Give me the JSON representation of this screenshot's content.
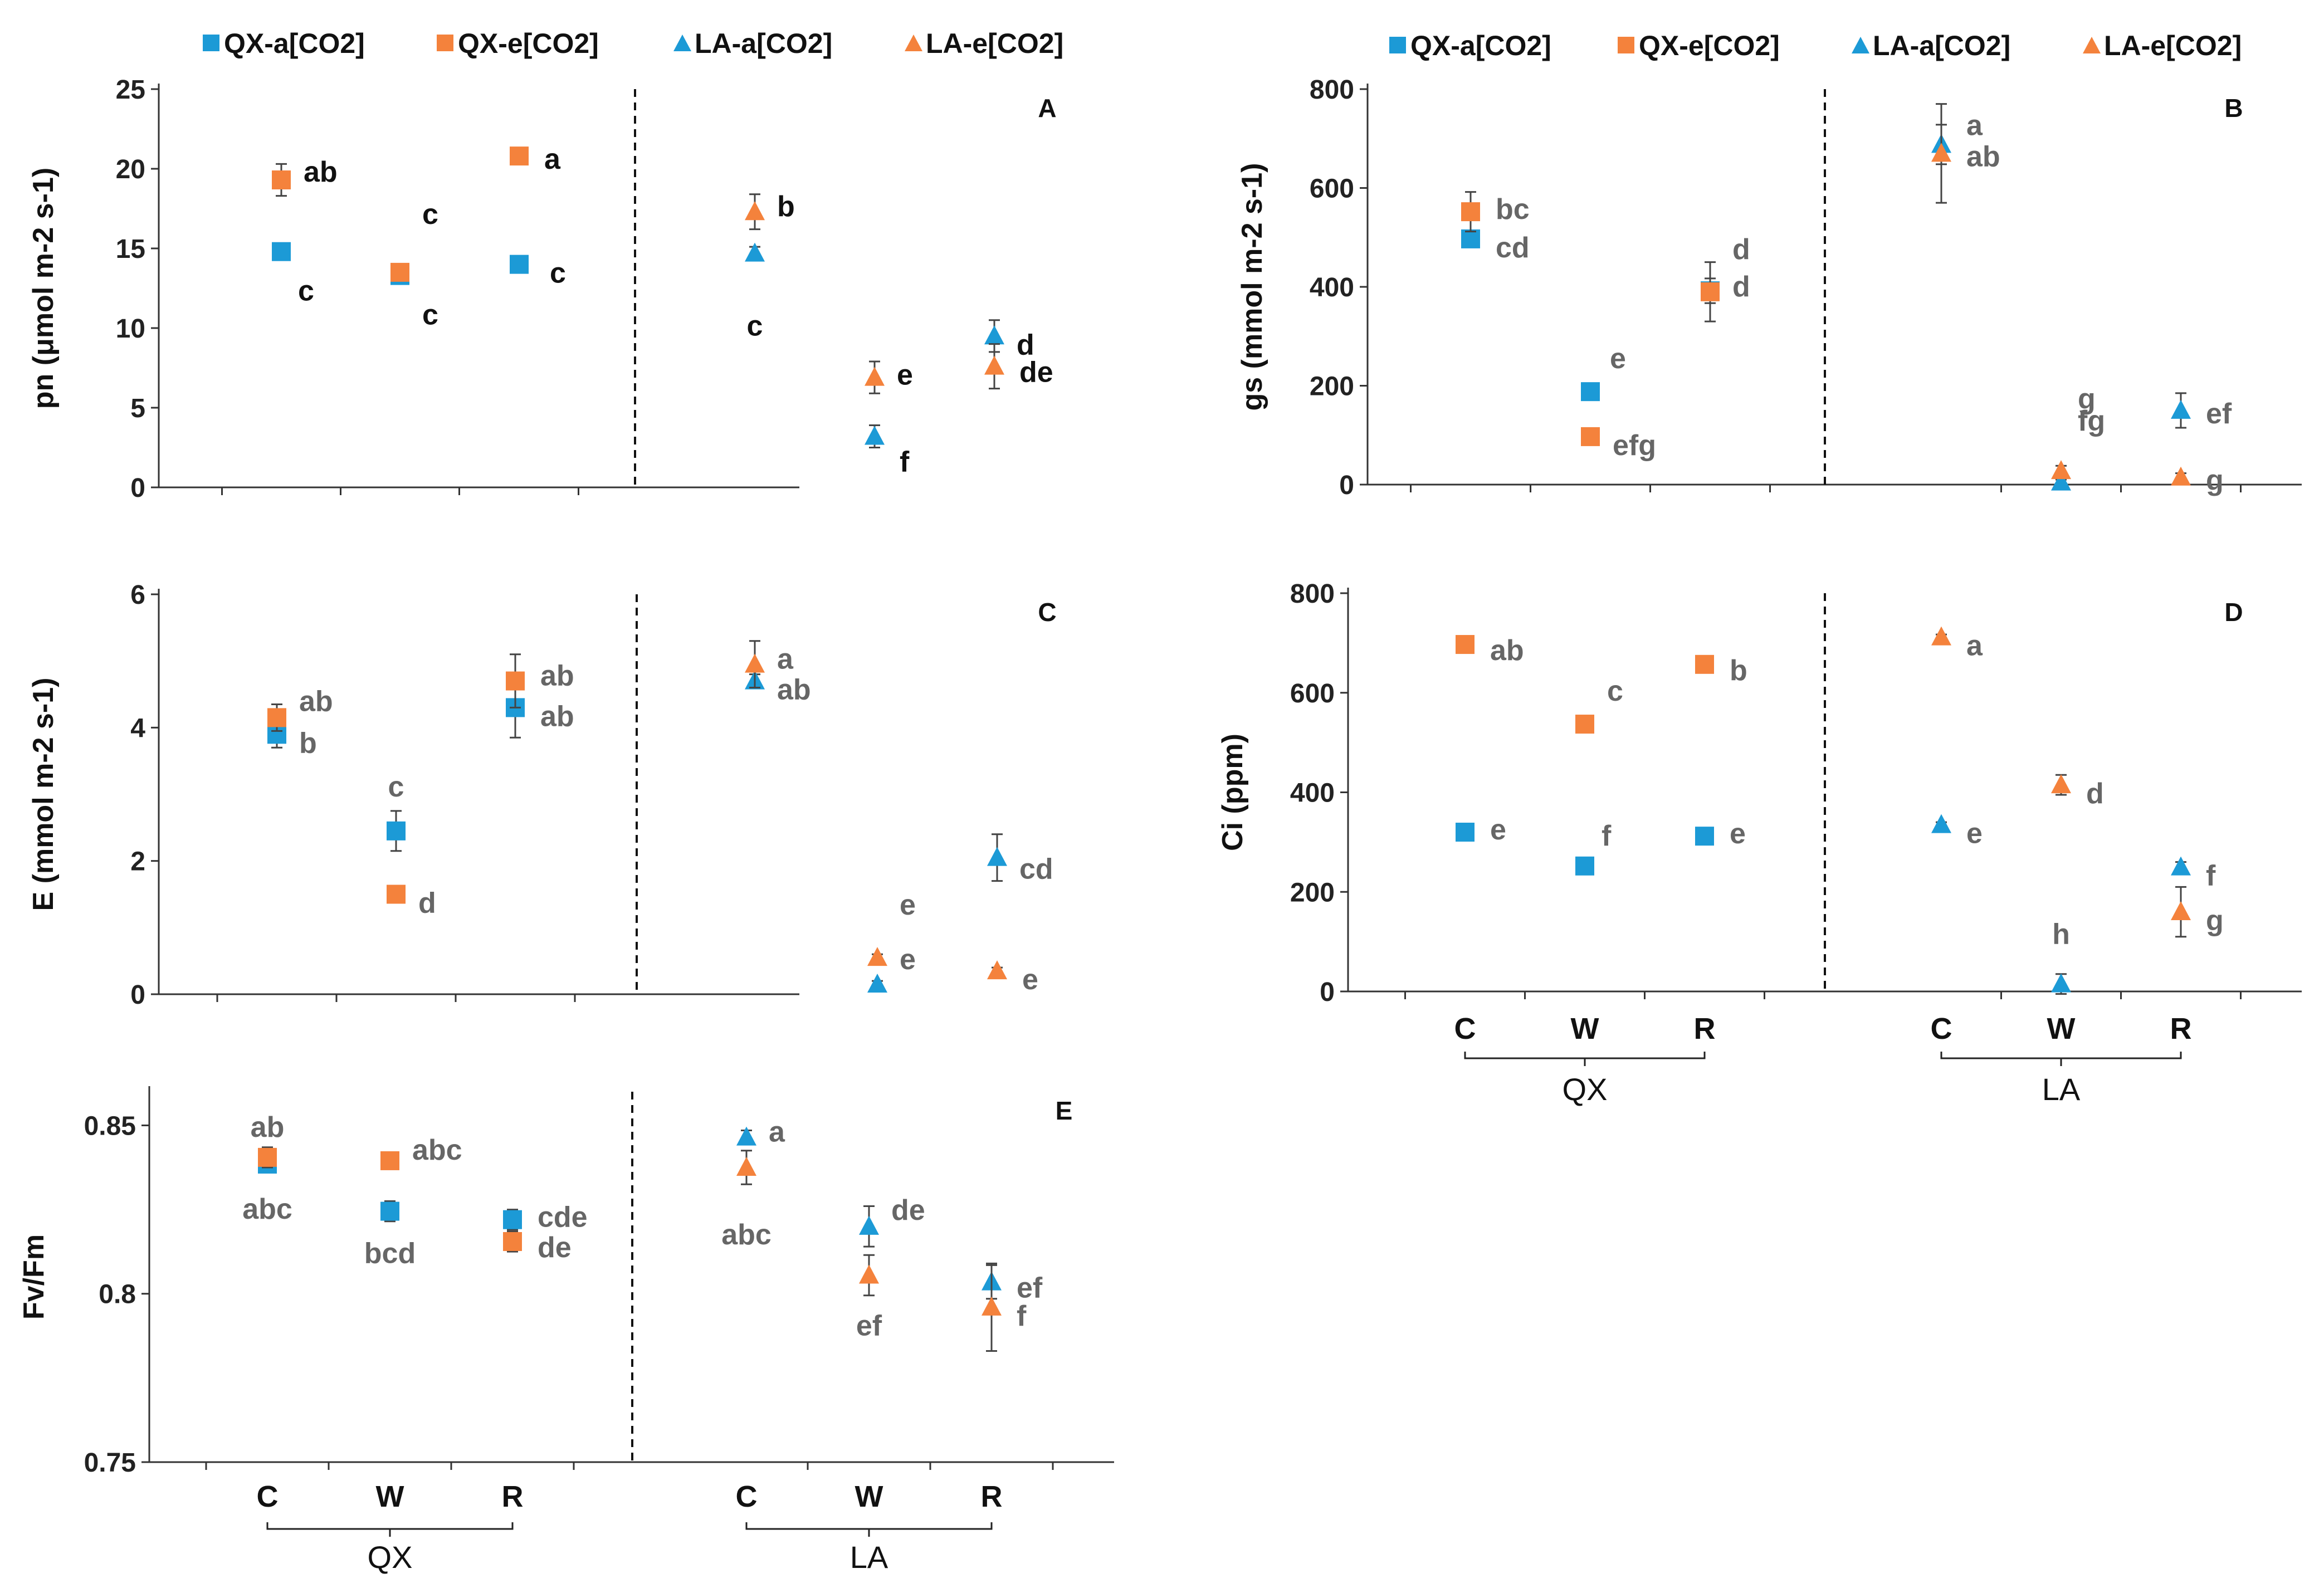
{
  "chart_data": {
    "type": "scatter",
    "colors": {
      "a_co2": "#1c9ad6",
      "e_co2": "#f4823c"
    },
    "legends": [
      {
        "panel": "A",
        "entries": [
          {
            "name": "QX-a[CO2]",
            "marker": "square",
            "color": "#1c9ad6"
          },
          {
            "name": "QX-e[CO2]",
            "marker": "square",
            "color": "#f4823c"
          },
          {
            "name": "LA-a[CO2]",
            "marker": "triangle",
            "color": "#1c9ad6"
          },
          {
            "name": "LA-e[CO2]",
            "marker": "triangle",
            "color": "#f4823c"
          }
        ]
      },
      {
        "panel": "B",
        "entries": [
          {
            "name": "QX-a[CO2]",
            "marker": "square",
            "color": "#1c9ad6"
          },
          {
            "name": "QX-e[CO2]",
            "marker": "square",
            "color": "#f4823c"
          },
          {
            "name": "LA-a[CO2]",
            "marker": "triangle",
            "color": "#1c9ad6"
          },
          {
            "name": "LA-e[CO2]",
            "marker": "triangle",
            "color": "#f4823c"
          }
        ]
      }
    ],
    "panels": [
      {
        "id": "A",
        "ylabel": "pn (μmol m-2 s-1)",
        "ylim": [
          0,
          25
        ],
        "yticks": [
          "0",
          "5",
          "10",
          "15",
          "20",
          "25"
        ],
        "tick_values": [
          0,
          5,
          10,
          15,
          20,
          25
        ],
        "series": [
          {
            "name": "QX-a[CO2]",
            "site": "QX",
            "marker": "square",
            "color": "#1c9ad6",
            "points": [
              {
                "x": "C",
                "y": 14.8,
                "err": 0.4,
                "letter": "c"
              },
              {
                "x": "W",
                "y": 13.3,
                "err": 0.4,
                "letter": "c"
              },
              {
                "x": "R",
                "y": 14.0,
                "err": 0.3,
                "letter": "c"
              }
            ]
          },
          {
            "name": "QX-e[CO2]",
            "site": "QX",
            "marker": "square",
            "color": "#f4823c",
            "points": [
              {
                "x": "C",
                "y": 19.3,
                "err": 1.0,
                "letter": "ab"
              },
              {
                "x": "W",
                "y": 13.5,
                "err": 0.4,
                "letter": "c"
              },
              {
                "x": "R",
                "y": 20.8,
                "err": 0.4,
                "letter": "a"
              }
            ]
          },
          {
            "name": "LA-a[CO2]",
            "site": "LA",
            "marker": "triangle",
            "color": "#1c9ad6",
            "points": [
              {
                "x": "C",
                "y": 14.7,
                "err": 0.4,
                "letter": "c"
              },
              {
                "x": "W",
                "y": 3.2,
                "err": 0.7,
                "letter": "f"
              },
              {
                "x": "R",
                "y": 9.5,
                "err": 1.0,
                "letter": "d"
              }
            ]
          },
          {
            "name": "LA-e[CO2]",
            "site": "LA",
            "marker": "triangle",
            "color": "#f4823c",
            "points": [
              {
                "x": "C",
                "y": 17.3,
                "err": 1.1,
                "letter": "b"
              },
              {
                "x": "W",
                "y": 6.9,
                "err": 1.0,
                "letter": "e"
              },
              {
                "x": "R",
                "y": 7.6,
                "err": 1.4,
                "letter": "de"
              }
            ]
          }
        ]
      },
      {
        "id": "B",
        "ylabel": "gs (mmol m-2 s-1)",
        "ylim": [
          0,
          800
        ],
        "yticks": [
          "0",
          "200",
          "400",
          "600",
          "800"
        ],
        "tick_values": [
          0,
          200,
          400,
          600,
          800
        ],
        "series": [
          {
            "name": "QX-a[CO2]",
            "site": "QX",
            "marker": "square",
            "color": "#1c9ad6",
            "points": [
              {
                "x": "C",
                "y": 497,
                "err": 15,
                "letter": "cd"
              },
              {
                "x": "W",
                "y": 188,
                "err": 15,
                "letter": "e"
              },
              {
                "x": "R",
                "y": 392,
                "err": 25,
                "letter": "d"
              }
            ]
          },
          {
            "name": "QX-e[CO2]",
            "site": "QX",
            "marker": "square",
            "color": "#f4823c",
            "points": [
              {
                "x": "C",
                "y": 552,
                "err": 40,
                "letter": "bc"
              },
              {
                "x": "W",
                "y": 97,
                "err": 10,
                "letter": "efg"
              },
              {
                "x": "R",
                "y": 390,
                "err": 60,
                "letter": "d"
              }
            ]
          },
          {
            "name": "LA-a[CO2]",
            "site": "LA",
            "marker": "triangle",
            "color": "#1c9ad6",
            "points": [
              {
                "x": "C",
                "y": 688,
                "err": 40,
                "letter": "a"
              },
              {
                "x": "W",
                "y": 5,
                "err": 5,
                "letter": "g"
              },
              {
                "x": "R",
                "y": 150,
                "err": 35,
                "letter": "ef"
              }
            ]
          },
          {
            "name": "LA-e[CO2]",
            "site": "LA",
            "marker": "triangle",
            "color": "#f4823c",
            "points": [
              {
                "x": "C",
                "y": 670,
                "err": 100,
                "letter": "ab"
              },
              {
                "x": "W",
                "y": 28,
                "err": 10,
                "letter": "fg"
              },
              {
                "x": "R",
                "y": 15,
                "err": 8,
                "letter": "g"
              }
            ]
          }
        ]
      },
      {
        "id": "C",
        "ylabel": "E (mmol m-2 s-1)",
        "ylim": [
          0,
          6
        ],
        "yticks": [
          "0",
          "2",
          "4",
          "6"
        ],
        "tick_values": [
          0,
          2,
          4,
          6
        ],
        "series": [
          {
            "name": "QX-a[CO2]",
            "site": "QX",
            "marker": "square",
            "color": "#1c9ad6",
            "points": [
              {
                "x": "C",
                "y": 3.9,
                "err": 0.2,
                "letter": "b"
              },
              {
                "x": "W",
                "y": 2.45,
                "err": 0.3,
                "letter": "c"
              },
              {
                "x": "R",
                "y": 4.3,
                "err": 0.45,
                "letter": "ab"
              }
            ]
          },
          {
            "name": "QX-e[CO2]",
            "site": "QX",
            "marker": "square",
            "color": "#f4823c",
            "points": [
              {
                "x": "C",
                "y": 4.15,
                "err": 0.2,
                "letter": "ab"
              },
              {
                "x": "W",
                "y": 1.5,
                "err": 0.05,
                "letter": "d"
              },
              {
                "x": "R",
                "y": 4.7,
                "err": 0.4,
                "letter": "ab"
              }
            ]
          },
          {
            "name": "LA-a[CO2]",
            "site": "LA",
            "marker": "triangle",
            "color": "#1c9ad6",
            "points": [
              {
                "x": "C",
                "y": 4.7,
                "err": 0.1,
                "letter": "ab"
              },
              {
                "x": "W",
                "y": 0.15,
                "err": 0.05,
                "letter": "e"
              },
              {
                "x": "R",
                "y": 2.05,
                "err": 0.35,
                "letter": "cd"
              }
            ]
          },
          {
            "name": "LA-e[CO2]",
            "site": "LA",
            "marker": "triangle",
            "color": "#f4823c",
            "points": [
              {
                "x": "C",
                "y": 4.95,
                "err": 0.35,
                "letter": "a"
              },
              {
                "x": "W",
                "y": 0.55,
                "err": 0.05,
                "letter": "e"
              },
              {
                "x": "R",
                "y": 0.35,
                "err": 0.05,
                "letter": "e"
              }
            ]
          }
        ]
      },
      {
        "id": "D",
        "ylabel": "Ci (ppm)",
        "ylim": [
          0,
          800
        ],
        "yticks": [
          "0",
          "200",
          "400",
          "600",
          "800"
        ],
        "tick_values": [
          0,
          200,
          400,
          600,
          800
        ],
        "series": [
          {
            "name": "QX-a[CO2]",
            "site": "QX",
            "marker": "square",
            "color": "#1c9ad6",
            "points": [
              {
                "x": "C",
                "y": 320,
                "err": 5,
                "letter": "e"
              },
              {
                "x": "W",
                "y": 252,
                "err": 5,
                "letter": "f"
              },
              {
                "x": "R",
                "y": 312,
                "err": 5,
                "letter": "e"
              }
            ]
          },
          {
            "name": "QX-e[CO2]",
            "site": "QX",
            "marker": "square",
            "color": "#f4823c",
            "points": [
              {
                "x": "C",
                "y": 697,
                "err": 5,
                "letter": "ab"
              },
              {
                "x": "W",
                "y": 537,
                "err": 5,
                "letter": "c"
              },
              {
                "x": "R",
                "y": 657,
                "err": 5,
                "letter": "b"
              }
            ]
          },
          {
            "name": "LA-a[CO2]",
            "site": "LA",
            "marker": "triangle",
            "color": "#1c9ad6",
            "points": [
              {
                "x": "C",
                "y": 335,
                "err": 5,
                "letter": "e"
              },
              {
                "x": "W",
                "y": 15,
                "err": 20,
                "letter": "h"
              },
              {
                "x": "R",
                "y": 250,
                "err": 10,
                "letter": "f"
              }
            ]
          },
          {
            "name": "LA-e[CO2]",
            "site": "LA",
            "marker": "triangle",
            "color": "#f4823c",
            "points": [
              {
                "x": "C",
                "y": 712,
                "err": 5,
                "letter": "a"
              },
              {
                "x": "W",
                "y": 415,
                "err": 20,
                "letter": "d"
              },
              {
                "x": "R",
                "y": 160,
                "err": 50,
                "letter": "g"
              }
            ]
          }
        ]
      },
      {
        "id": "E",
        "ylabel": "Fv/Fm",
        "ylim": [
          0.75,
          0.86
        ],
        "yticks": [
          "0.75",
          "0.8",
          "0.85"
        ],
        "tick_values": [
          0.75,
          0.8,
          0.85
        ],
        "series": [
          {
            "name": "QX-a[CO2]",
            "site": "QX",
            "marker": "square",
            "color": "#1c9ad6",
            "points": [
              {
                "x": "C",
                "y": 0.8385,
                "err": 0.002,
                "letter": "abc"
              },
              {
                "x": "W",
                "y": 0.8245,
                "err": 0.003,
                "letter": "bcd"
              },
              {
                "x": "R",
                "y": 0.822,
                "err": 0.003,
                "letter": "cde"
              }
            ]
          },
          {
            "name": "QX-e[CO2]",
            "site": "QX",
            "marker": "square",
            "color": "#f4823c",
            "points": [
              {
                "x": "C",
                "y": 0.8405,
                "err": 0.003,
                "letter": "ab"
              },
              {
                "x": "W",
                "y": 0.8395,
                "err": 0.002,
                "letter": "abc"
              },
              {
                "x": "R",
                "y": 0.8155,
                "err": 0.003,
                "letter": "de"
              }
            ]
          },
          {
            "name": "LA-a[CO2]",
            "site": "LA",
            "marker": "triangle",
            "color": "#1c9ad6",
            "points": [
              {
                "x": "C",
                "y": 0.8465,
                "err": 0.002,
                "letter": "a"
              },
              {
                "x": "W",
                "y": 0.82,
                "err": 0.006,
                "letter": "de"
              },
              {
                "x": "R",
                "y": 0.8035,
                "err": 0.005,
                "letter": "ef"
              }
            ]
          },
          {
            "name": "LA-e[CO2]",
            "site": "LA",
            "marker": "triangle",
            "color": "#f4823c",
            "points": [
              {
                "x": "C",
                "y": 0.8375,
                "err": 0.005,
                "letter": "abc"
              },
              {
                "x": "W",
                "y": 0.8055,
                "err": 0.006,
                "letter": "ef"
              },
              {
                "x": "R",
                "y": 0.796,
                "err": 0.013,
                "letter": "f"
              }
            ]
          }
        ]
      }
    ],
    "x_groups": [
      {
        "site": "QX",
        "categories": [
          "C",
          "W",
          "R"
        ]
      },
      {
        "site": "LA",
        "categories": [
          "C",
          "W",
          "R"
        ]
      }
    ]
  }
}
